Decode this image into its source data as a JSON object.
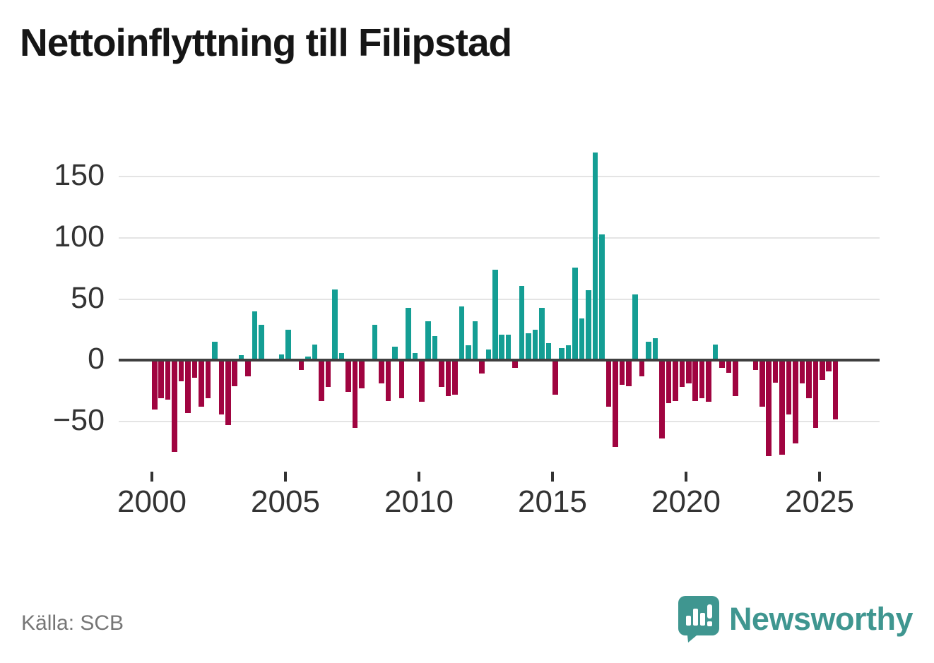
{
  "title": "Nettoinflyttning till Filipstad",
  "source": "Källa: SCB",
  "brand": {
    "name": "Newsworthy"
  },
  "colors": {
    "positive": "#149e94",
    "negative": "#a00440",
    "title_text": "#161616",
    "axis_text": "#333333",
    "gridline": "#e4e4e4",
    "zero_line": "#3f3f3f",
    "source_text": "#767676",
    "brand_teal": "#3f9690"
  },
  "chart_data": {
    "type": "bar",
    "title": "Nettoinflyttning till Filipstad",
    "frequency": "quarterly",
    "start_period": "2000Q1",
    "end_period": "2025Q3",
    "xlabel": "",
    "ylabel": "",
    "grid": "horizontal",
    "legend": "none",
    "y_ticks": [
      150,
      100,
      50,
      0,
      -50
    ],
    "y_tick_labels": [
      "150",
      "100",
      "50",
      "0",
      "−50"
    ],
    "ylim": [
      -90,
      185
    ],
    "x_ticks": [
      2000,
      2005,
      2010,
      2015,
      2020,
      2025
    ],
    "x_tick_labels": [
      "2000",
      "2005",
      "2010",
      "2015",
      "2020",
      "2025"
    ],
    "values": [
      -40,
      -31,
      -32,
      -75,
      -17,
      -43,
      -14,
      -38,
      -31,
      15,
      -44,
      -53,
      -21,
      4,
      -13,
      40,
      29,
      0,
      0,
      5,
      25,
      0,
      -8,
      3,
      13,
      -33,
      -22,
      58,
      6,
      -26,
      -55,
      -23,
      0,
      29,
      -19,
      -33,
      11,
      -31,
      43,
      6,
      -34,
      32,
      20,
      -22,
      -29,
      -28,
      44,
      12,
      32,
      -11,
      9,
      74,
      21,
      21,
      -6,
      61,
      22,
      25,
      43,
      14,
      -28,
      10,
      12,
      76,
      34,
      57,
      170,
      103,
      -38,
      -71,
      -20,
      -21,
      54,
      -13,
      15,
      18,
      -64,
      -35,
      -33,
      -22,
      -19,
      -33,
      -31,
      -34,
      13,
      -6,
      -10,
      -29,
      0,
      0,
      -8,
      -38,
      -78,
      -18,
      -77,
      -44,
      -68,
      -19,
      -31,
      -55,
      -16,
      -9,
      -48
    ]
  }
}
